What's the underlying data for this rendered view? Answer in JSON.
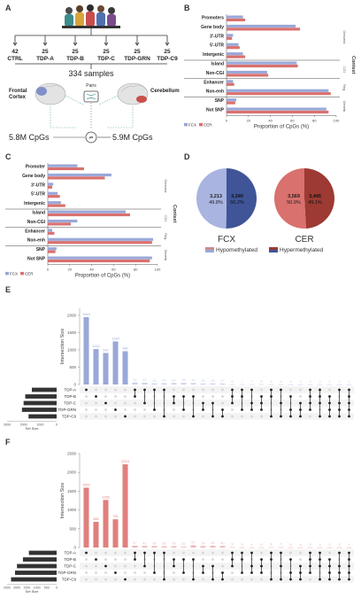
{
  "panel_a": {
    "label": "A",
    "groups": [
      {
        "n": "42",
        "name": "CTRL"
      },
      {
        "n": "25",
        "name": "TDP-A"
      },
      {
        "n": "25",
        "name": "TDP-B"
      },
      {
        "n": "25",
        "name": "TDP-C"
      },
      {
        "n": "25",
        "name": "TDP-GRN"
      },
      {
        "n": "25",
        "name": "TDP-C9"
      }
    ],
    "samples": "334 samples",
    "left_region": "Frontal\nCortex",
    "right_region": "Cerebellum",
    "pairs": "Pairs",
    "left_cpgs": "5.8M CpGs",
    "right_cpgs": "5.9M CpGs",
    "colors": {
      "blue": "#9aa8d8",
      "red": "#d9716e"
    }
  },
  "panel_b": {
    "label": "B",
    "xlabel": "Proportion of CpGs (%)",
    "context_label": "Context",
    "legend": [
      "FCX",
      "CER"
    ],
    "ticks": [
      "0",
      "20",
      "40",
      "60",
      "80",
      "100"
    ],
    "groups": [
      "Genomic",
      "CGI",
      "Reg.",
      "Genetic"
    ]
  },
  "panel_c": {
    "label": "C",
    "xlabel": "Proportion of CpGs (%)",
    "context_label": "Context",
    "legend": [
      "FCX",
      "CER"
    ],
    "ticks": [
      "0",
      "20",
      "40",
      "60",
      "80",
      "100"
    ],
    "groups": [
      "Genomic",
      "CGI",
      "Reg.",
      "Genetic"
    ]
  },
  "panel_d": {
    "label": "D",
    "pies": [
      {
        "name": "FCX",
        "left_n": "3,213",
        "left_pct": "49.8%",
        "right_n": "3,240",
        "right_pct": "50.2%",
        "c1": "#a9b4e0",
        "c2": "#3f5597"
      },
      {
        "name": "CER",
        "left_n": "3,569",
        "left_pct": "50.9%",
        "right_n": "3,445",
        "right_pct": "49.1%",
        "c1": "#d9716e",
        "c2": "#9c3a33"
      }
    ],
    "legend": [
      "Hypomethylated",
      "Hypermethylated"
    ]
  },
  "panel_e": {
    "label": "E",
    "ylabel": "Intersection Size",
    "set_size_label": "Set Size",
    "sets": [
      "TDP-A",
      "TDP-B",
      "TDP-C",
      "TDP-GRN",
      "TDP-C9"
    ],
    "set_sizes": [
      1500,
      1900,
      2000,
      2100,
      1700
    ],
    "set_ticks": [
      "3000",
      "2000",
      "1000",
      "0"
    ],
    "yticks": [
      "0",
      "500",
      "1000",
      "1500",
      "2000"
    ],
    "bar_color": "#9aa8d8",
    "small_color": "#c9d0ea"
  },
  "panel_f": {
    "label": "F",
    "ylabel": "Intersection Size",
    "set_size_label": "Set Size",
    "sets": [
      "TDP-A",
      "TDP-B",
      "TDP-C",
      "TDP-GRN",
      "TDP-C9"
    ],
    "set_sizes": [
      1400,
      1700,
      2000,
      2100,
      2300
    ],
    "set_ticks": [
      "2500",
      "2000",
      "1500",
      "1000",
      "500",
      "0"
    ],
    "yticks": [
      "0",
      "500",
      "1000",
      "1500",
      "2000",
      "2500"
    ],
    "bar_color": "#e0807d",
    "small_color": "#ebb5b3"
  },
  "chart_data": [
    {
      "type": "bar",
      "orientation": "horizontal",
      "panel": "B",
      "categories": [
        "Promoters",
        "Gene body",
        "3'-UTR",
        "5'-UTR",
        "Intergenic",
        "Island",
        "Non-CGI",
        "Enhancer",
        "Non-enh",
        "SNP",
        "Not SNP"
      ],
      "series": [
        {
          "name": "FCX",
          "values": [
            15,
            63,
            6,
            11,
            15,
            64,
            37,
            6,
            93,
            9,
            91
          ]
        },
        {
          "name": "CER",
          "values": [
            17,
            67,
            5,
            12,
            17,
            65,
            38,
            7,
            95,
            8,
            93
          ]
        }
      ],
      "xlabel": "Proportion of CpGs (%)",
      "xlim": [
        0,
        100
      ]
    },
    {
      "type": "bar",
      "orientation": "horizontal",
      "panel": "C",
      "categories": [
        "Promoter",
        "Gene body",
        "3'-UTR",
        "5'-UTR",
        "Intergenic",
        "Island",
        "Non-CGI",
        "Enhancer",
        "Non-enh",
        "SNP",
        "Not SNP"
      ],
      "series": [
        {
          "name": "FCX",
          "values": [
            27,
            58,
            5,
            9,
            12,
            71,
            27,
            4,
            96,
            8,
            95
          ]
        },
        {
          "name": "CER",
          "values": [
            33,
            52,
            4,
            11,
            16,
            75,
            21,
            6,
            95,
            7,
            93
          ]
        }
      ],
      "xlabel": "Proportion of CpGs (%)",
      "xlim": [
        0,
        100
      ]
    },
    {
      "type": "pie",
      "panel": "D",
      "pies": [
        {
          "name": "FCX",
          "labels": [
            "Hypomethylated",
            "Hypermethylated"
          ],
          "values": [
            3213,
            3240
          ]
        },
        {
          "name": "CER",
          "labels": [
            "Hypomethylated",
            "Hypermethylated"
          ],
          "values": [
            3569,
            3445
          ]
        }
      ]
    },
    {
      "type": "bar",
      "panel": "E",
      "values": [
        1944,
        1022,
        910,
        1244,
        960,
        56,
        49,
        30,
        34,
        40,
        45,
        40,
        26,
        30,
        27,
        6,
        7,
        7,
        8,
        6,
        5,
        4,
        3,
        3,
        2,
        2,
        2,
        1
      ],
      "labels": [
        "1944",
        "1022",
        "910",
        "1244",
        "960",
        "56",
        "49",
        "30",
        "34",
        "40",
        "45",
        "40",
        "26",
        "30",
        "27",
        "6",
        "7",
        "7",
        "8",
        "6",
        "5",
        "4",
        "3",
        "3",
        "2",
        "2",
        "2",
        "1"
      ],
      "ylabel": "Intersection Size",
      "ylim": [
        0,
        2200
      ]
    },
    {
      "type": "bar",
      "panel": "F",
      "values": [
        1592,
        683,
        1266,
        751,
        2214,
        47,
        41,
        39,
        30,
        33,
        20,
        57,
        39,
        44,
        40,
        9,
        5,
        4,
        5,
        8,
        7,
        5,
        4,
        5,
        3,
        2,
        2,
        1
      ],
      "labels": [
        "1592",
        "683",
        "1266",
        "751",
        "2214",
        "47",
        "41",
        "39",
        "30",
        "33",
        "20",
        "57",
        "39",
        "44",
        "40",
        "9",
        "5",
        "4",
        "5",
        "8",
        "7",
        "5",
        "4",
        "5",
        "3",
        "2",
        "2",
        "1"
      ],
      "ylabel": "Intersection Size",
      "ylim": [
        0,
        2500
      ]
    }
  ]
}
